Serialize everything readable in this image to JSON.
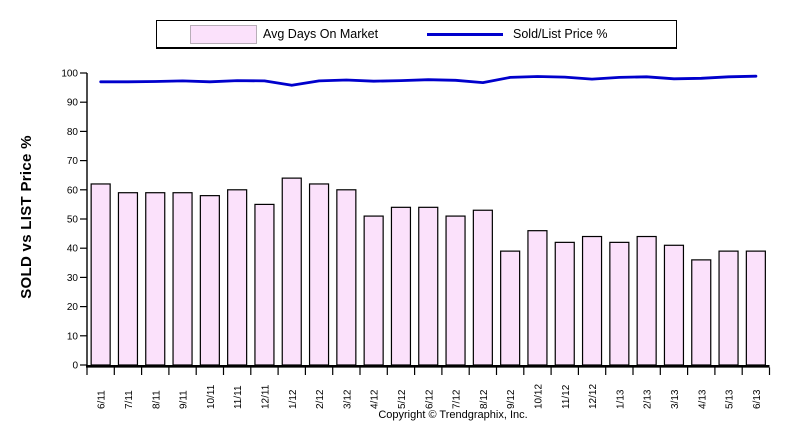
{
  "legend": {
    "bar_label": "Avg Days On Market",
    "line_label": "Sold/List Price %"
  },
  "y_axis_title": "SOLD vs LIST Price %",
  "copyright": "Copyright © Trendgraphix, Inc.",
  "colors": {
    "bar_fill": "#fbe1fb",
    "bar_border": "#000000",
    "line": "#0000cc",
    "axis": "#000000"
  },
  "chart_data": {
    "type": "combo",
    "categories": [
      "6/11",
      "7/11",
      "8/11",
      "9/11",
      "10/11",
      "11/11",
      "12/11",
      "1/12",
      "2/12",
      "3/12",
      "4/12",
      "5/12",
      "6/12",
      "7/12",
      "8/12",
      "9/12",
      "10/12",
      "11/12",
      "12/12",
      "1/13",
      "2/13",
      "3/13",
      "4/13",
      "5/13",
      "6/13"
    ],
    "series": [
      {
        "name": "Avg Days On Market",
        "type": "bar",
        "values": [
          62,
          59,
          59,
          59,
          58,
          60,
          55,
          64,
          62,
          60,
          51,
          54,
          54,
          51,
          53,
          39,
          46,
          42,
          44,
          42,
          44,
          41,
          36,
          39,
          39
        ]
      },
      {
        "name": "Sold/List Price %",
        "type": "line",
        "values": [
          97.0,
          97.0,
          97.1,
          97.3,
          97.0,
          97.4,
          97.3,
          95.8,
          97.3,
          97.6,
          97.2,
          97.4,
          97.7,
          97.5,
          96.7,
          98.5,
          98.8,
          98.6,
          97.9,
          98.5,
          98.7,
          98.0,
          98.2,
          98.7,
          98.9
        ]
      }
    ],
    "ylim": [
      0,
      100
    ],
    "y_ticks": [
      0,
      10,
      20,
      30,
      40,
      50,
      60,
      70,
      80,
      90,
      100
    ],
    "grid": false,
    "legend_position": "top"
  }
}
